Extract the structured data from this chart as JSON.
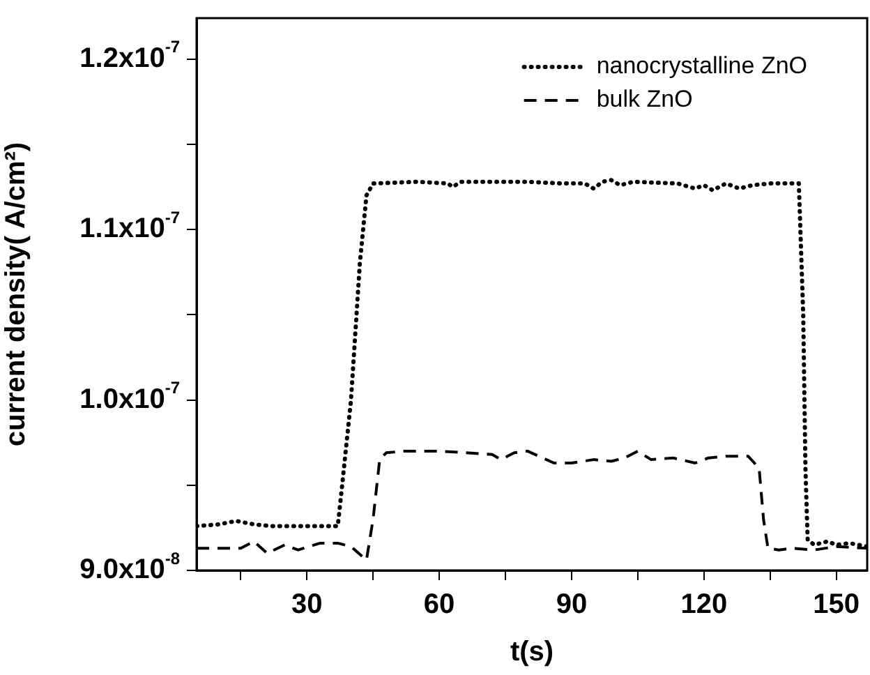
{
  "chart_data": {
    "type": "line",
    "xlabel": "t(s)",
    "ylabel": "current density( A/cm²)",
    "xlim": [
      5,
      157
    ],
    "xticks": [
      {
        "value": 15,
        "label": null
      },
      30,
      {
        "value": 45,
        "label": null
      },
      60,
      {
        "value": 75,
        "label": null
      },
      90,
      {
        "value": 105,
        "label": null
      },
      120,
      {
        "value": 135,
        "label": null
      },
      150
    ],
    "ylim": [
      9e-08,
      1.224e-07
    ],
    "yticks": [
      {
        "value": 9e-08,
        "label": "9.0x10$^{-8}$"
      },
      {
        "value": 9.5e-08,
        "label": null
      },
      {
        "value": 1e-07,
        "label": "1.0x10$^{-7}$"
      },
      {
        "value": 1.05e-07,
        "label": null
      },
      {
        "value": 1.1e-07,
        "label": "1.1x10$^{-7}$"
      },
      {
        "value": 1.15e-07,
        "label": null
      },
      {
        "value": 1.2e-07,
        "label": "1.2x10$^{-7}$"
      }
    ],
    "grid": false,
    "legend": "top right",
    "marker": "none",
    "series": [
      {
        "name": "nanocrystalline ZnO",
        "color": "#000000",
        "line_style": "dotted",
        "x": [
          5,
          10,
          14,
          18,
          22,
          30,
          37,
          38,
          40,
          42,
          43.5,
          45,
          55,
          62,
          63,
          65,
          80,
          88,
          93,
          95,
          97,
          99,
          101,
          104,
          114,
          118,
          120,
          122,
          125,
          128,
          131,
          135,
          141.5,
          142.5,
          143,
          143.5,
          145,
          148,
          150,
          153,
          157
        ],
        "values": [
          9.26e-08,
          9.27e-08,
          9.29e-08,
          9.27e-08,
          9.26e-08,
          9.26e-08,
          9.26e-08,
          9.5e-08,
          1e-07,
          1.08e-07,
          1.12e-07,
          1.127e-07,
          1.128e-07,
          1.127e-07,
          1.125e-07,
          1.128e-07,
          1.128e-07,
          1.127e-07,
          1.127e-07,
          1.124e-07,
          1.128e-07,
          1.129e-07,
          1.126e-07,
          1.128e-07,
          1.127e-07,
          1.124e-07,
          1.126e-07,
          1.123e-07,
          1.127e-07,
          1.124e-07,
          1.126e-07,
          1.127e-07,
          1.127e-07,
          1.05e-07,
          9.6e-08,
          9.18e-08,
          9.15e-08,
          9.17e-08,
          9.15e-08,
          9.16e-08,
          9.14e-08
        ]
      },
      {
        "name": "bulk ZnO",
        "color": "#000000",
        "line_style": "dashed",
        "x": [
          5,
          10,
          15,
          18,
          21,
          25,
          28,
          33,
          37,
          40,
          43.5,
          45,
          46.5,
          48,
          52,
          60,
          72,
          74,
          77,
          80,
          86,
          90,
          95,
          99,
          102,
          105,
          108,
          113,
          118,
          121,
          125,
          130,
          132.5,
          133.5,
          134.5,
          137,
          140,
          145,
          150,
          157
        ],
        "values": [
          9.13e-08,
          9.13e-08,
          9.13e-08,
          9.17e-08,
          9.1e-08,
          9.15e-08,
          9.12e-08,
          9.16e-08,
          9.16e-08,
          9.14e-08,
          9.06e-08,
          9.3e-08,
          9.65e-08,
          9.69e-08,
          9.7e-08,
          9.7e-08,
          9.68e-08,
          9.65e-08,
          9.69e-08,
          9.7e-08,
          9.63e-08,
          9.63e-08,
          9.65e-08,
          9.64e-08,
          9.66e-08,
          9.7e-08,
          9.65e-08,
          9.66e-08,
          9.63e-08,
          9.66e-08,
          9.67e-08,
          9.67e-08,
          9.6e-08,
          9.3e-08,
          9.13e-08,
          9.12e-08,
          9.13e-08,
          9.12e-08,
          9.14e-08,
          9.13e-08
        ]
      }
    ]
  }
}
